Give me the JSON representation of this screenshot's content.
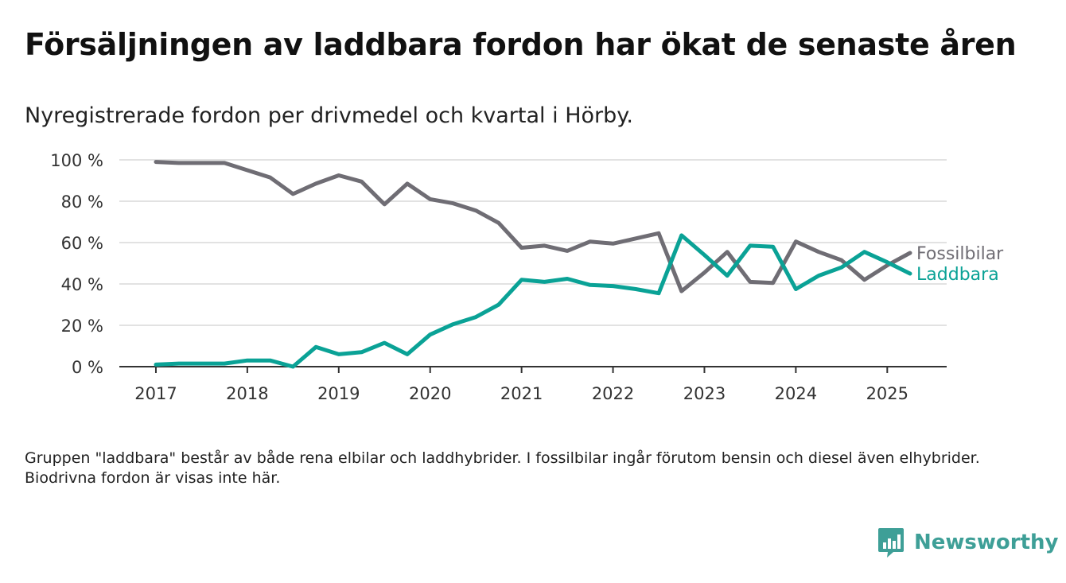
{
  "header": {
    "title": "Försäljningen av laddbara fordon har ökat de senaste åren",
    "subtitle": "Nyregistrerade fordon per drivmedel och kvartal i Hörby."
  },
  "footer": {
    "note": "Gruppen \"laddbara\" består av både rena elbilar och laddhybrider. I fossilbilar ingår förutom bensin och diesel även elhybrider. Biodrivna fordon är visas inte här.",
    "brand": "Newsworthy",
    "brand_icon": "newsworthy-logo-icon"
  },
  "colors": {
    "fossil": "#6f6d74",
    "laddbara": "#0aa296",
    "grid": "#d9d9d9",
    "axis": "#333333",
    "brand": "#3e9f97"
  },
  "chart_data": {
    "type": "line",
    "x_unit": "year",
    "x_ticks": [
      2017,
      2018,
      2019,
      2020,
      2021,
      2022,
      2023,
      2024,
      2025
    ],
    "x_tick_labels": [
      "2017",
      "2018",
      "2019",
      "2020",
      "2021",
      "2022",
      "2023",
      "2024",
      "2025"
    ],
    "xlim": [
      2016.6,
      2025.65
    ],
    "y_ticks": [
      0,
      20,
      40,
      60,
      80,
      100
    ],
    "y_tick_labels": [
      "0 %",
      "20 %",
      "40 %",
      "60 %",
      "80 %",
      "100 %"
    ],
    "ylim": [
      0,
      100
    ],
    "grid": "horizontal",
    "x": [
      2017.0,
      2017.25,
      2017.5,
      2017.75,
      2018.0,
      2018.25,
      2018.5,
      2018.75,
      2019.0,
      2019.25,
      2019.5,
      2019.75,
      2020.0,
      2020.25,
      2020.5,
      2020.75,
      2021.0,
      2021.25,
      2021.5,
      2021.75,
      2022.0,
      2022.25,
      2022.5,
      2022.75,
      2023.0,
      2023.25,
      2023.5,
      2023.75,
      2024.0,
      2024.25,
      2024.5,
      2024.75,
      2025.0,
      2025.25
    ],
    "series": [
      {
        "name": "Fossilbilar",
        "color": "#6f6d74",
        "values": [
          99,
          98.5,
          98.5,
          98.5,
          95,
          91.5,
          83.5,
          88.5,
          92.5,
          89.5,
          78.5,
          88.5,
          81,
          79,
          75.5,
          69.5,
          57.5,
          58.5,
          56,
          60.5,
          59.5,
          62,
          64.5,
          36.5,
          45.5,
          55.5,
          41,
          40.5,
          60.5,
          55.5,
          51.5,
          42,
          49,
          55
        ]
      },
      {
        "name": "Laddbara",
        "color": "#0aa296",
        "values": [
          1,
          1.5,
          1.5,
          1.5,
          3,
          3,
          0,
          9.5,
          6,
          7,
          11.5,
          6,
          15.5,
          20.5,
          24,
          30,
          42,
          41,
          42.5,
          39.5,
          39,
          37.5,
          35.5,
          63.5,
          54,
          44,
          58.5,
          58,
          37.5,
          44,
          48,
          55.5,
          50.5,
          45
        ]
      }
    ]
  }
}
